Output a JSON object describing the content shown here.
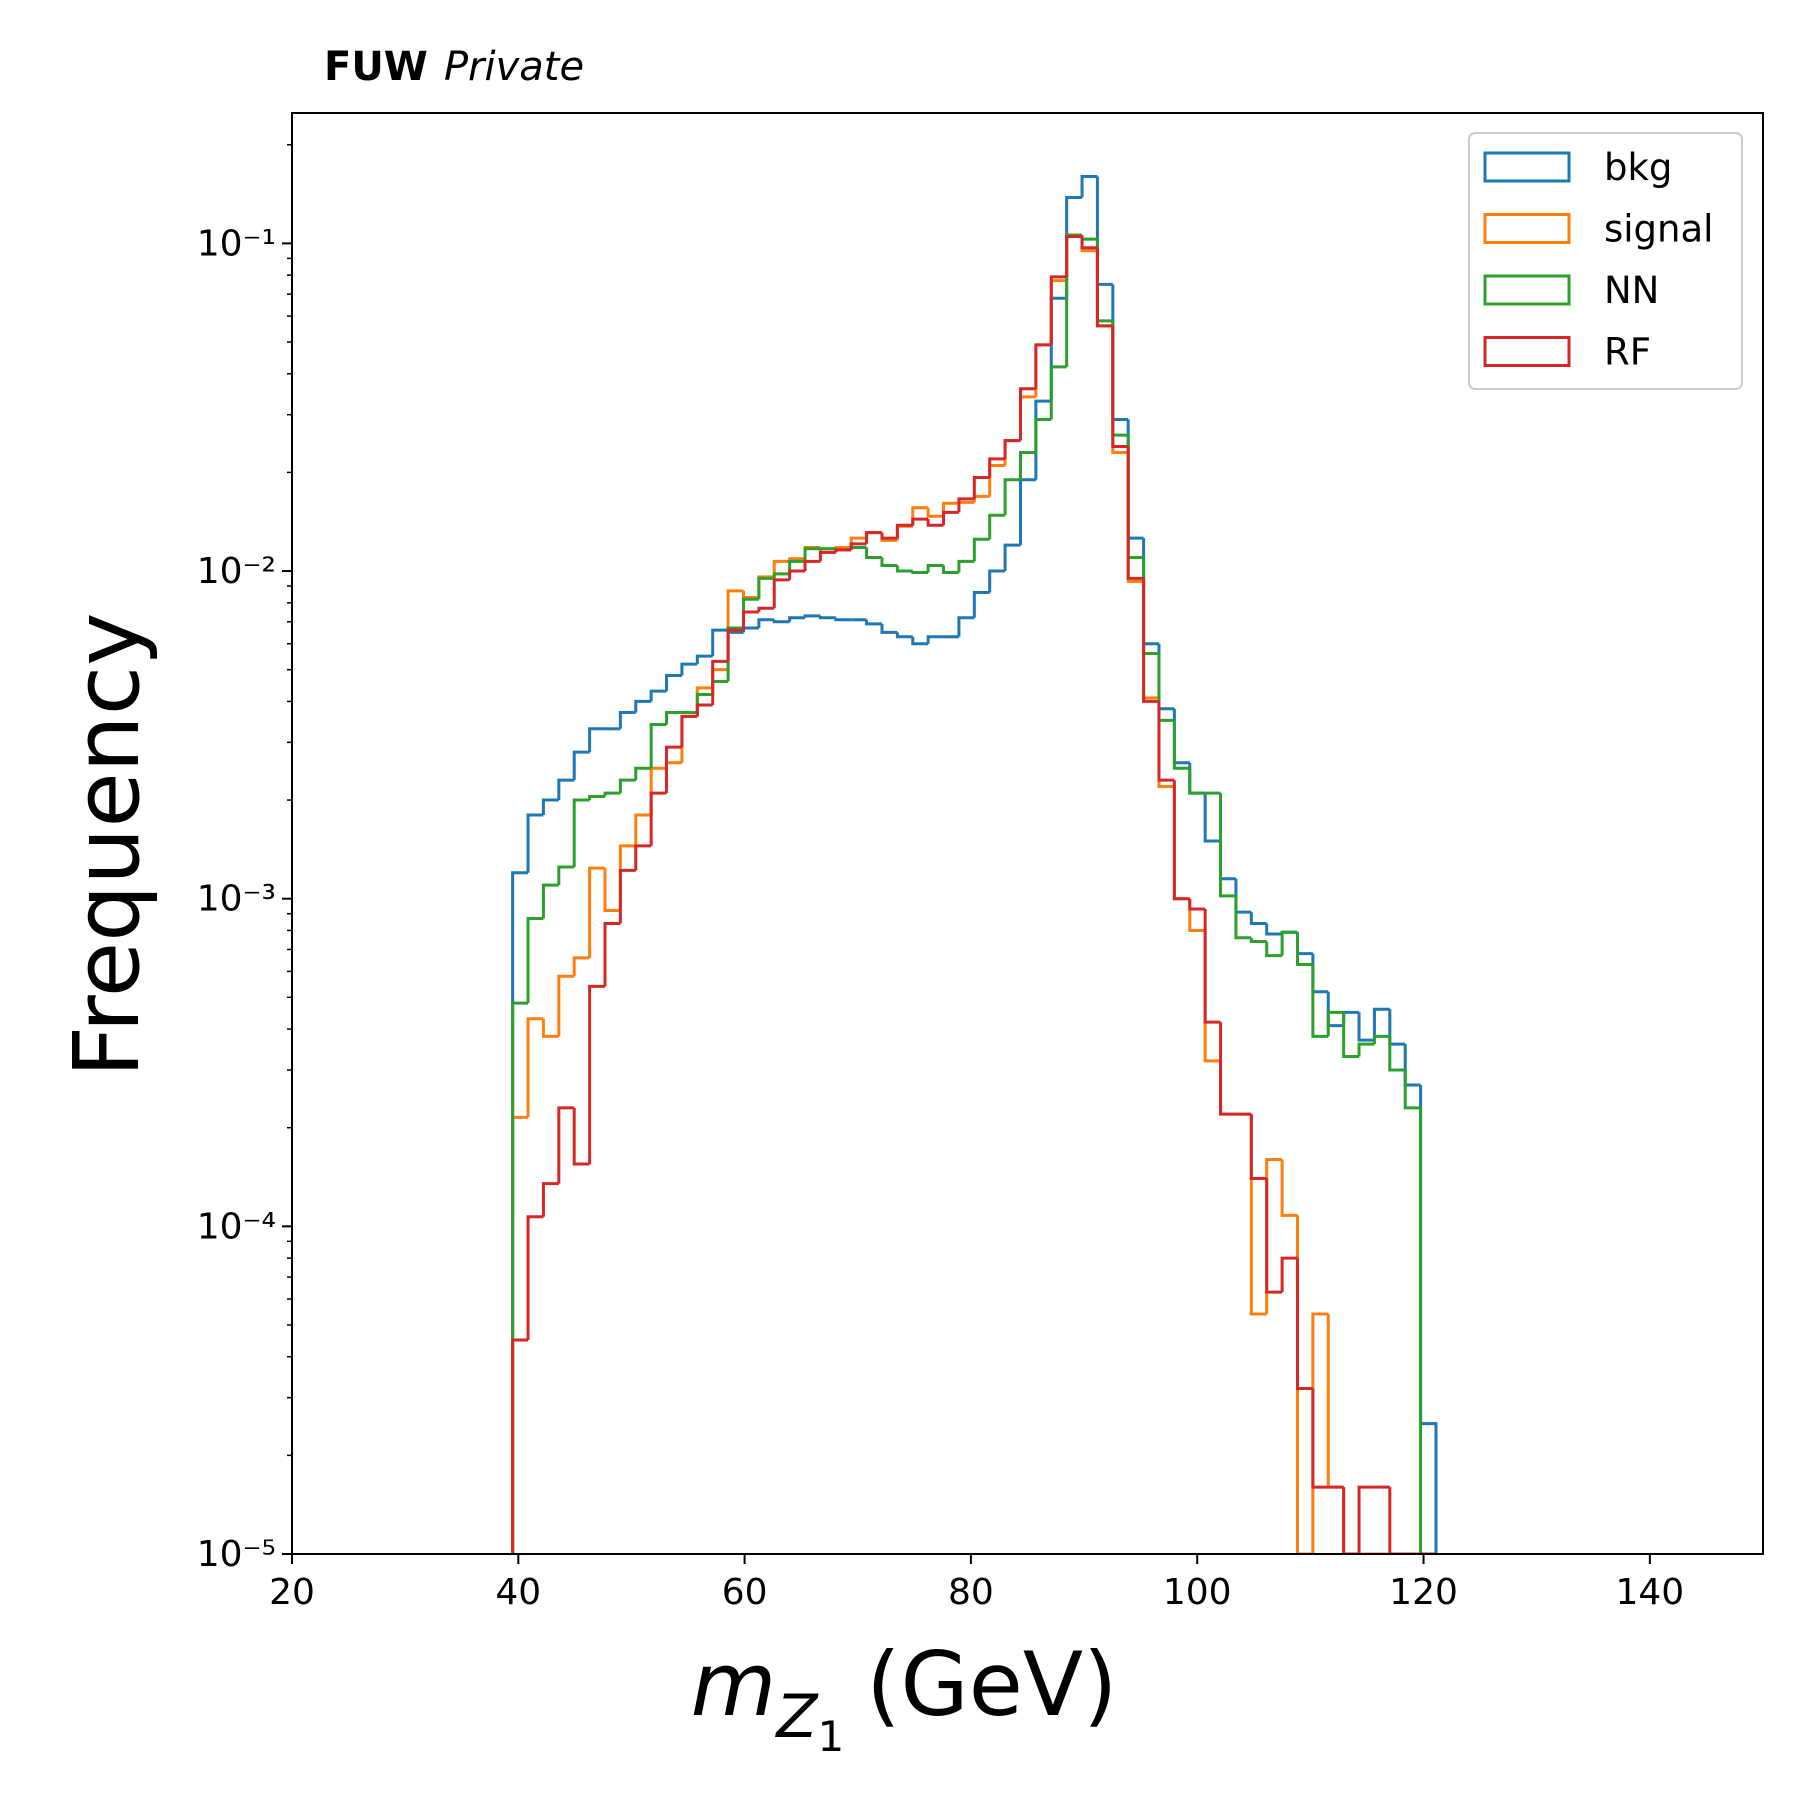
{
  "chart_data": {
    "type": "histogram",
    "experiment_label": "FUW",
    "experiment_status": "Private",
    "xlabel": {
      "symbol": "m",
      "subscript": "Z",
      "subsubscript": "1",
      "unit": "(GeV)"
    },
    "ylabel": "Frequency",
    "log_y": true,
    "legend_position": "upper right",
    "xlim": [
      20,
      150
    ],
    "xticks": [
      20,
      40,
      60,
      80,
      100,
      120,
      140
    ],
    "ylim": [
      1e-05,
      0.25
    ],
    "yticks": [
      {
        "value": 1e-05,
        "label": "10⁻⁵"
      },
      {
        "value": 0.0001,
        "label": "10⁻⁴"
      },
      {
        "value": 0.001,
        "label": "10⁻³"
      },
      {
        "value": 0.01,
        "label": "10⁻²"
      },
      {
        "value": 0.1,
        "label": "10⁻¹"
      }
    ],
    "bins": [
      39.5,
      40.86,
      42.22,
      43.58,
      44.94,
      46.3,
      47.66,
      49.02,
      50.38,
      51.74,
      53.1,
      54.46,
      55.82,
      57.18,
      58.54,
      59.9,
      61.26,
      62.62,
      63.98,
      65.34,
      66.7,
      68.06,
      69.42,
      70.78,
      72.14,
      73.5,
      74.86,
      76.22,
      77.58,
      78.94,
      80.3,
      81.66,
      83.02,
      84.38,
      85.74,
      87.1,
      88.46,
      89.82,
      91.18,
      92.54,
      93.9,
      95.26,
      96.62,
      97.98,
      99.34,
      100.7,
      102.06,
      103.42,
      104.78,
      106.14,
      107.5,
      108.86,
      110.22,
      111.58,
      112.94,
      114.3,
      115.66,
      117.02,
      118.38,
      119.74,
      121.1
    ],
    "series": [
      {
        "name": "bkg",
        "color": "#1f77b4",
        "values": [
          0.0012,
          0.0018,
          0.002,
          0.0023,
          0.0028,
          0.0033,
          0.0033,
          0.0037,
          0.004,
          0.0043,
          0.0048,
          0.0052,
          0.0055,
          0.0066,
          0.0065,
          0.0067,
          0.0071,
          0.007,
          0.0072,
          0.0073,
          0.0072,
          0.0071,
          0.0071,
          0.0069,
          0.0065,
          0.0063,
          0.006,
          0.0063,
          0.0063,
          0.0072,
          0.0086,
          0.01,
          0.012,
          0.019,
          0.033,
          0.068,
          0.138,
          0.16,
          0.075,
          0.029,
          0.0126,
          0.006,
          0.0038,
          0.0026,
          0.0021,
          0.0015,
          0.00115,
          0.00091,
          0.00084,
          0.00078,
          0.00079,
          0.00068,
          0.00052,
          0.00041,
          0.00045,
          0.00037,
          0.00046,
          0.00036,
          0.00027,
          2.5e-05
        ]
      },
      {
        "name": "signal",
        "color": "#ff7f0e",
        "values": [
          0.000215,
          0.00043,
          0.00038,
          0.00058,
          0.00066,
          0.00124,
          0.00092,
          0.00145,
          0.0018,
          0.0025,
          0.0026,
          0.0036,
          0.0044,
          0.005,
          0.0087,
          0.0083,
          0.0096,
          0.0107,
          0.0109,
          0.0118,
          0.0114,
          0.0118,
          0.0126,
          0.0131,
          0.0124,
          0.0137,
          0.0156,
          0.0147,
          0.0161,
          0.0162,
          0.0169,
          0.021,
          0.025,
          0.034,
          0.049,
          0.077,
          0.106,
          0.095,
          0.056,
          0.023,
          0.0093,
          0.0041,
          0.0022,
          0.001,
          0.0008,
          0.00032,
          0.00022,
          0.00022,
          5.4e-05,
          0.00016,
          0.000108,
          0,
          5.4e-05,
          1.6e-05,
          0,
          0,
          0,
          0,
          0,
          0
        ]
      },
      {
        "name": "NN",
        "color": "#2ca02c",
        "values": [
          0.00048,
          0.00087,
          0.0011,
          0.00125,
          0.002,
          0.00205,
          0.0021,
          0.0023,
          0.0025,
          0.0034,
          0.0037,
          0.0037,
          0.0042,
          0.0046,
          0.0067,
          0.0082,
          0.0095,
          0.0098,
          0.0107,
          0.0117,
          0.0117,
          0.0116,
          0.0118,
          0.011,
          0.0104,
          0.01,
          0.0099,
          0.0104,
          0.0099,
          0.0107,
          0.0125,
          0.0148,
          0.019,
          0.023,
          0.029,
          0.042,
          0.106,
          0.103,
          0.058,
          0.026,
          0.011,
          0.0056,
          0.0035,
          0.0025,
          0.0021,
          0.0021,
          0.00102,
          0.00076,
          0.00074,
          0.00067,
          0.00079,
          0.00063,
          0.00038,
          0.00045,
          0.00033,
          0.00036,
          0.00038,
          0.0003,
          0.00023,
          0
        ]
      },
      {
        "name": "RF",
        "color": "#d62728",
        "values": [
          4.5e-05,
          0.000107,
          0.000135,
          0.00023,
          0.000155,
          0.00054,
          0.00084,
          0.00122,
          0.00145,
          0.0021,
          0.0029,
          0.0036,
          0.0039,
          0.0053,
          0.0066,
          0.0075,
          0.0077,
          0.0094,
          0.01,
          0.0107,
          0.0114,
          0.0116,
          0.0121,
          0.0131,
          0.0126,
          0.0138,
          0.0144,
          0.0138,
          0.0151,
          0.0166,
          0.0193,
          0.022,
          0.025,
          0.036,
          0.049,
          0.079,
          0.105,
          0.097,
          0.056,
          0.024,
          0.0095,
          0.004,
          0.0023,
          0.001,
          0.00093,
          0.00042,
          0.00022,
          0.00022,
          0.00014,
          6.3e-05,
          8e-05,
          3.2e-05,
          1.6e-05,
          1.6e-05,
          0,
          1.6e-05,
          1.6e-05,
          0,
          0,
          0
        ]
      }
    ]
  }
}
